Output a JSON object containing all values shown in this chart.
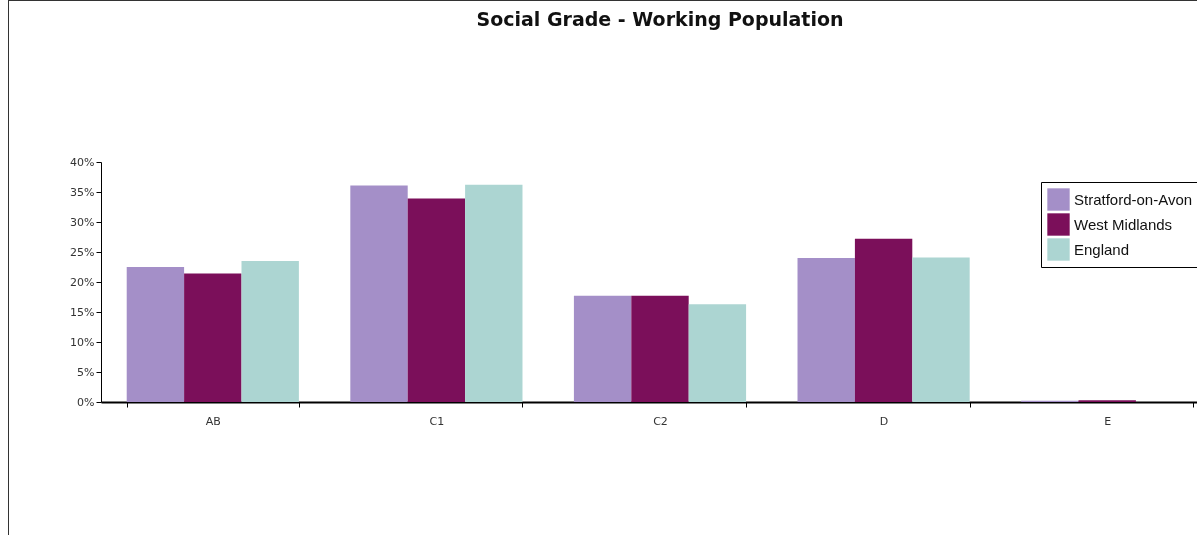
{
  "chart_data": {
    "type": "bar",
    "title": "Social Grade - Working Population",
    "categories": [
      "AB",
      "C1",
      "C2",
      "D",
      "E"
    ],
    "series": [
      {
        "name": "Stratford-on-Avon",
        "color": "#a48fc8",
        "values": [
          22.5,
          36.1,
          17.7,
          24.0,
          0.2
        ]
      },
      {
        "name": "West Midlands",
        "color": "#7b0f5a",
        "values": [
          21.4,
          33.9,
          17.7,
          27.2,
          0.3
        ]
      },
      {
        "name": "England",
        "color": "#acd5d2",
        "values": [
          23.5,
          36.2,
          16.3,
          24.1,
          null
        ]
      }
    ],
    "ylim": [
      0,
      40
    ],
    "yticks": [
      {
        "value": 0,
        "label": "0%"
      },
      {
        "value": 5,
        "label": "5%"
      },
      {
        "value": 10,
        "label": "10%"
      },
      {
        "value": 15,
        "label": "15%"
      },
      {
        "value": 20,
        "label": "20%"
      },
      {
        "value": 25,
        "label": "25%"
      },
      {
        "value": 30,
        "label": "30%"
      },
      {
        "value": 35,
        "label": "35%"
      },
      {
        "value": 40,
        "label": "40%"
      }
    ],
    "grid": false,
    "legend": "top right"
  }
}
